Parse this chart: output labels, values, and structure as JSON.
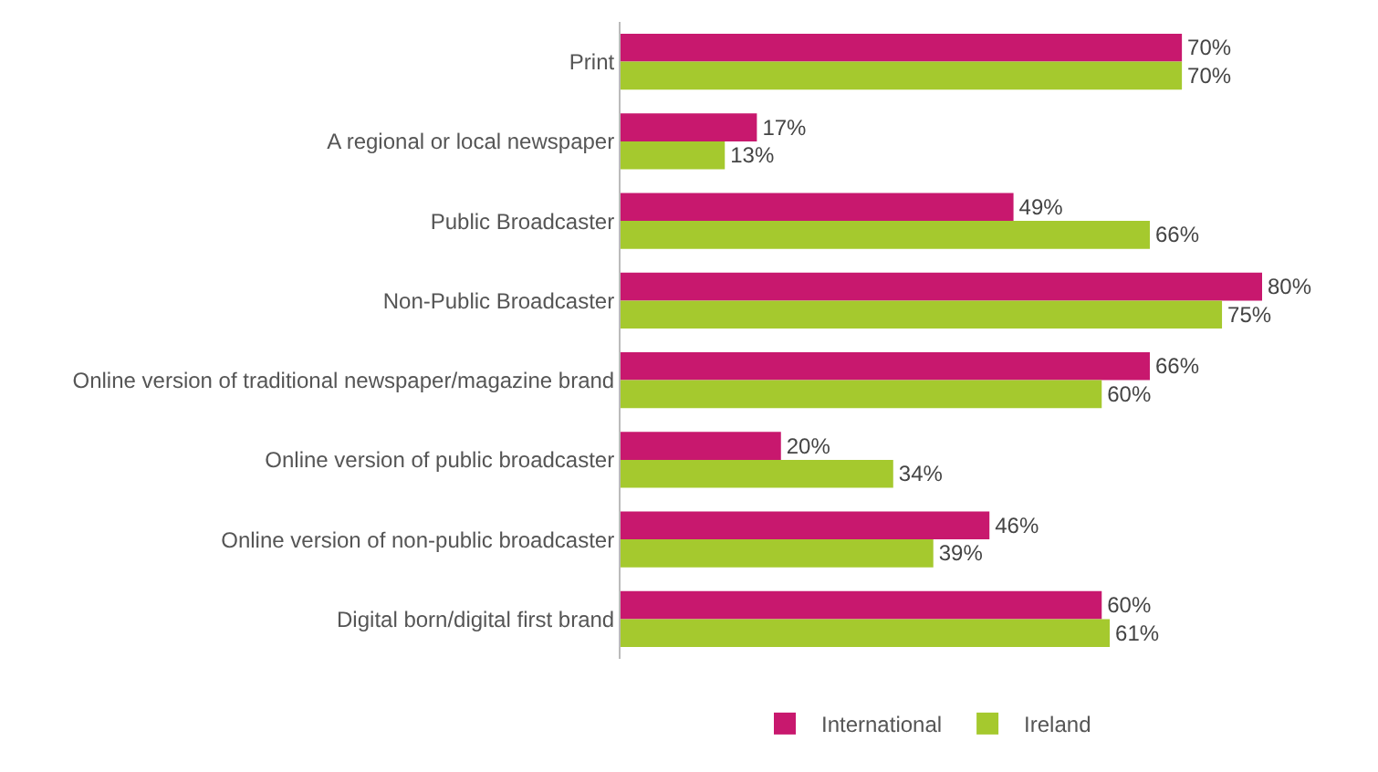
{
  "chart_data": {
    "type": "bar",
    "orientation": "horizontal",
    "categories": [
      "Print",
      "A regional or local newspaper",
      "Public Broadcaster",
      "Non-Public Broadcaster",
      "Online version of traditional newspaper/magazine brand",
      "Online version of public broadcaster",
      "Online version of non-public broadcaster",
      "Digital born/digital first brand"
    ],
    "series": [
      {
        "name": "International",
        "color": "#c8186e",
        "values": [
          70,
          17,
          49,
          80,
          66,
          20,
          46,
          60
        ],
        "value_labels": [
          "70%",
          "17%",
          "49%",
          "80%",
          "66%",
          "20%",
          "46%",
          "60%"
        ]
      },
      {
        "name": "Ireland",
        "color": "#a5c92e",
        "values": [
          70,
          13,
          66,
          75,
          60,
          34,
          39,
          61
        ],
        "value_labels": [
          "70%",
          "13%",
          "66%",
          "75%",
          "60%",
          "34%",
          "39%",
          "61%"
        ]
      }
    ],
    "tick_labels": "y",
    "legend": "bottom"
  }
}
